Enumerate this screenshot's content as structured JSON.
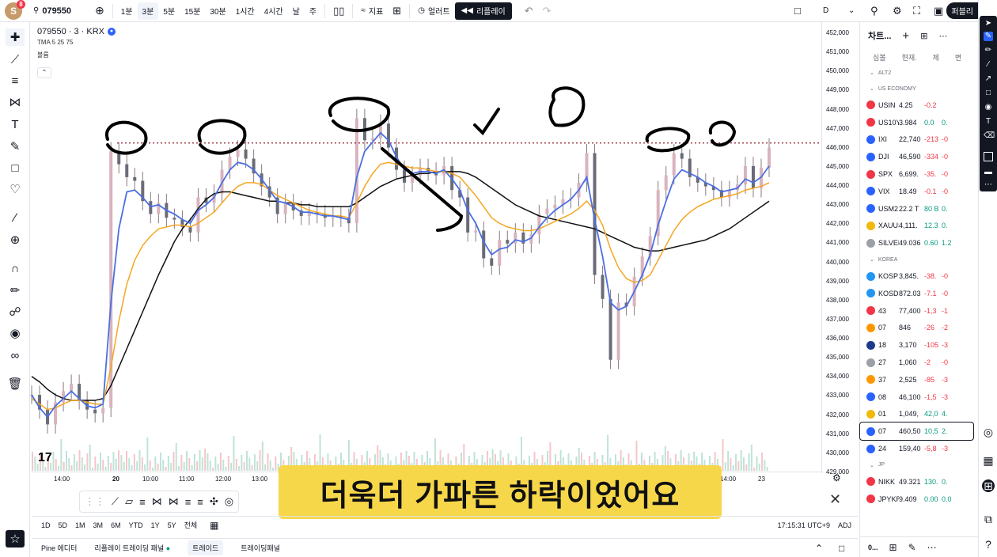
{
  "topbar": {
    "avatar_letter": "S",
    "avatar_badge": "8",
    "symbol": "079550",
    "intervals": [
      "1분",
      "3분",
      "5분",
      "15분",
      "30분",
      "1시간",
      "4시간",
      "날",
      "주"
    ],
    "active_interval": "3분",
    "indicators_label": "지표",
    "alert_label": "얼러트",
    "replay_label": "리플레이",
    "d_label": "D",
    "publish_label": "퍼블리"
  },
  "legend": {
    "title": "079550 · 3 · KRX",
    "ma_label": "TMA 5 25 75",
    "volume_label": "볼륨"
  },
  "price_axis": [
    "452,000",
    "451,000",
    "450,000",
    "449,000",
    "448,000",
    "447,000",
    "446,000",
    "445,000",
    "444,000",
    "443,000",
    "442,000",
    "441,000",
    "440,000",
    "439,000",
    "438,000",
    "437,000",
    "436,000",
    "435,000",
    "434,000",
    "433,000",
    "432,000",
    "431,000",
    "430,000",
    "429,000"
  ],
  "time_axis": [
    "14:00",
    "20",
    "10:00",
    "11:00",
    "12:00",
    "13:00",
    "14:00",
    "23"
  ],
  "caption": "더욱더 가파른 하락이었어요",
  "rangebar": {
    "ranges": [
      "1D",
      "5D",
      "1M",
      "3M",
      "6M",
      "YTD",
      "1Y",
      "5Y",
      "전체"
    ],
    "clock": "17:15:31 UTC+9",
    "adj": "ADJ"
  },
  "bottom_tabs": [
    "Pine 에디터",
    "리플레이 트레이딩 패널",
    "트레이드",
    "트레이딩패널"
  ],
  "watchlist": {
    "title": "차트...",
    "columns": [
      "심볼",
      "현재.",
      "체",
      "변"
    ],
    "groups": {
      "alt2": "ALT2",
      "us": "US ECONOMY",
      "korea": "KOREA",
      "jp": "JP"
    },
    "rows_us": [
      {
        "sym": "USIN",
        "price": "4.25",
        "chg": "-0.2",
        "pct": "",
        "color": "#f23645",
        "icon": "us-flag-icon",
        "dir": "neg"
      },
      {
        "sym": "US10Y",
        "price": "3.984",
        "chg": "0.0",
        "pct": "0.",
        "color": "#f23645",
        "icon": "us-flag-icon",
        "dir": "pos"
      },
      {
        "sym": "IXI",
        "price": "22,740",
        "chg": "-213",
        "pct": "-0",
        "color": "#2962ff",
        "icon": "nasdaq-icon",
        "dir": "neg"
      },
      {
        "sym": "DJI",
        "price": "46,590",
        "chg": "-334",
        "pct": "-0",
        "color": "#2962ff",
        "icon": "dji-icon",
        "dir": "neg"
      },
      {
        "sym": "SPX",
        "price": "6,699.",
        "chg": "-35.",
        "pct": "-0",
        "color": "#f23645",
        "icon": "spx-icon",
        "dir": "neg"
      },
      {
        "sym": "VIX",
        "price": "18.49",
        "chg": "-0.1",
        "pct": "-0",
        "color": "#2962ff",
        "icon": "vix-icon",
        "dir": "neg"
      },
      {
        "sym": "USM2",
        "price": "22.2 T",
        "chg": "80 B",
        "pct": "0.",
        "color": "#2962ff",
        "icon": "us-flag-icon",
        "dir": "pos"
      },
      {
        "sym": "XAUUS",
        "price": "4,111.",
        "chg": "12.3",
        "pct": "0.",
        "color": "#f0b90b",
        "icon": "gold-icon",
        "dir": "pos"
      },
      {
        "sym": "SILVER",
        "price": "49.036",
        "chg": "0.60",
        "pct": "1.2",
        "color": "#9aa0a6",
        "icon": "silver-icon",
        "dir": "pos"
      }
    ],
    "rows_kr": [
      {
        "sym": "KOSP",
        "price": "3,845.",
        "chg": "-38.",
        "pct": "-0",
        "color": "#2196f3",
        "icon": "kospi-icon",
        "dir": "neg"
      },
      {
        "sym": "KOSD",
        "price": "872.03",
        "chg": "-7.1",
        "pct": "-0",
        "color": "#2196f3",
        "icon": "kosdaq-icon",
        "dir": "neg"
      },
      {
        "sym": "43",
        "price": "77,400",
        "chg": "-1,3",
        "pct": "-1",
        "color": "#f23645",
        "icon": "stock-icon",
        "dir": "neg"
      },
      {
        "sym": "07",
        "price": "846",
        "chg": "-26",
        "pct": "-2",
        "color": "#ff9800",
        "icon": "stock-icon",
        "dir": "neg"
      },
      {
        "sym": "18",
        "price": "3,170",
        "chg": "-105",
        "pct": "-3",
        "color": "#1e3a8a",
        "icon": "stock-icon",
        "dir": "neg"
      },
      {
        "sym": "27",
        "price": "1,060",
        "chg": "-2",
        "pct": "-0",
        "color": "#9aa0a6",
        "icon": "stock-icon",
        "dir": "neg"
      },
      {
        "sym": "37",
        "price": "2,525",
        "chg": "-85",
        "pct": "-3",
        "color": "#ff9800",
        "icon": "stock-icon",
        "dir": "neg"
      },
      {
        "sym": "08",
        "price": "46,100",
        "chg": "-1,5",
        "pct": "-3",
        "color": "#2962ff",
        "icon": "stock-icon",
        "dir": "neg"
      },
      {
        "sym": "01",
        "price": "1,049,",
        "chg": "42,0",
        "pct": "4.",
        "color": "#f0b90b",
        "icon": "stock-icon",
        "dir": "pos"
      },
      {
        "sym": "07",
        "price": "460,50",
        "chg": "10,5",
        "pct": "2.",
        "color": "#2962ff",
        "icon": "stock-icon",
        "dir": "pos"
      },
      {
        "sym": "24",
        "price": "159,40",
        "chg": "-5,8",
        "pct": "-3",
        "color": "#2962ff",
        "icon": "stock-icon",
        "dir": "neg"
      }
    ],
    "rows_jp": [
      {
        "sym": "NIKK",
        "price": "49.321",
        "chg": "130.",
        "pct": "0.",
        "color": "#f23645",
        "icon": "japan-flag-icon",
        "dir": "pos"
      },
      {
        "sym": "JPYKR",
        "price": "9.409",
        "chg": "0.00",
        "pct": "0.0",
        "color": "#f23645",
        "icon": "japan-flag-icon",
        "dir": "pos"
      }
    ],
    "bottom_symbol": "0..."
  },
  "chart_data": {
    "type": "line",
    "resistance_level": 446650,
    "ylim": [
      428800,
      452600
    ],
    "close_series": [
      433000,
      432200,
      431400,
      432600,
      433200,
      433600,
      432700,
      432200,
      432000,
      432300,
      446200,
      445500,
      444800,
      444600,
      443500,
      442800,
      443400,
      442600,
      442500,
      442100,
      441800,
      443700,
      443400,
      443900,
      445200,
      445900,
      446300,
      445800,
      445000,
      444300,
      443700,
      442800,
      443400,
      443000,
      442700,
      442900,
      442800,
      442600,
      442700,
      442600,
      442300,
      448000,
      446800,
      446900,
      447700,
      446400,
      445200,
      444500,
      444900,
      445300,
      445100,
      444900,
      445400,
      444100,
      443700,
      441800,
      441900,
      440400,
      440000,
      441400,
      441200,
      441800,
      441200,
      441700,
      442800,
      443100,
      443300,
      443600,
      443700,
      444500,
      446100,
      439500,
      438200,
      434900,
      438000,
      437800,
      439400,
      440500,
      441600,
      444100,
      444900,
      446100,
      445800,
      444800,
      444500,
      444300,
      444100,
      443700,
      444100,
      444400,
      445400,
      444200,
      445300,
      446400
    ],
    "ma_fast": [
      433000,
      432300,
      431800,
      432400,
      432800,
      433200,
      432800,
      432400,
      432300,
      432500,
      438000,
      442000,
      444000,
      444100,
      443700,
      443200,
      443300,
      443000,
      442800,
      442500,
      442300,
      443000,
      443300,
      443700,
      444500,
      445200,
      445600,
      445500,
      445200,
      444700,
      444100,
      443500,
      443400,
      443200,
      442900,
      442900,
      442800,
      442700,
      442700,
      442600,
      442500,
      444800,
      446200,
      446700,
      447200,
      446800,
      445900,
      445200,
      445000,
      445100,
      445100,
      445000,
      445200,
      444700,
      444100,
      443000,
      442300,
      441300,
      440600,
      440900,
      441000,
      441400,
      441300,
      441500,
      442100,
      442600,
      443000,
      443300,
      443600,
      444100,
      444800,
      442500,
      440500,
      438000,
      437600,
      437800,
      438600,
      439500,
      440600,
      442200,
      443500,
      444700,
      445200,
      445000,
      444800,
      444500,
      444300,
      444000,
      444100,
      444200,
      444700,
      444500,
      444800,
      445400
    ],
    "ma_mid": [
      432800,
      432500,
      432200,
      432300,
      432500,
      432700,
      432700,
      432600,
      432500,
      432500,
      434500,
      437000,
      439000,
      440300,
      441100,
      441600,
      442000,
      442100,
      442200,
      442200,
      442100,
      442300,
      442600,
      442900,
      443400,
      443900,
      444300,
      444500,
      444500,
      444400,
      444100,
      443800,
      443600,
      443400,
      443200,
      443000,
      442900,
      442800,
      442700,
      442700,
      442600,
      443400,
      444300,
      445000,
      445500,
      445600,
      445500,
      445400,
      445300,
      445300,
      445200,
      445100,
      445100,
      445000,
      444800,
      444300,
      443800,
      443200,
      442600,
      442300,
      442100,
      442000,
      441900,
      441900,
      442000,
      442200,
      442400,
      442600,
      442800,
      443100,
      443500,
      443000,
      442200,
      440900,
      439900,
      439300,
      439100,
      439200,
      439500,
      440300,
      441100,
      441900,
      442500,
      442900,
      443200,
      443400,
      443600,
      443700,
      443800,
      443900,
      444100,
      444200,
      444300,
      444500
    ],
    "ma_slow": [
      434000,
      433700,
      433300,
      433000,
      432800,
      432700,
      432700,
      432700,
      432700,
      432800,
      433500,
      434500,
      435500,
      436500,
      437500,
      438500,
      439500,
      440400,
      441300,
      442000,
      442500,
      443100,
      443600,
      443900,
      444000,
      444000,
      443900,
      443800,
      443700,
      443600,
      443500,
      443500,
      443400,
      443400,
      443300,
      443300,
      443200,
      443200,
      443200,
      443200,
      443200,
      443400,
      443700,
      444000,
      444300,
      444500,
      444700,
      444800,
      444900,
      445000,
      445000,
      445100,
      445100,
      445100,
      445100,
      445000,
      444800,
      444500,
      444200,
      443900,
      443600,
      443300,
      443100,
      442900,
      442700,
      442600,
      442500,
      442400,
      442300,
      442200,
      442100,
      442000,
      441800,
      441600,
      441400,
      441200,
      441000,
      440900,
      440800,
      440800,
      440900,
      441000,
      441100,
      441200,
      441300,
      441400,
      441600,
      441800,
      442000,
      442300,
      442600,
      442900,
      443200,
      443500
    ],
    "series": [
      {
        "name": "TMA 5",
        "color": "#4a6fe3"
      },
      {
        "name": "TMA 25",
        "color": "#f5a623"
      },
      {
        "name": "TMA 75",
        "color": "#111111"
      }
    ]
  }
}
